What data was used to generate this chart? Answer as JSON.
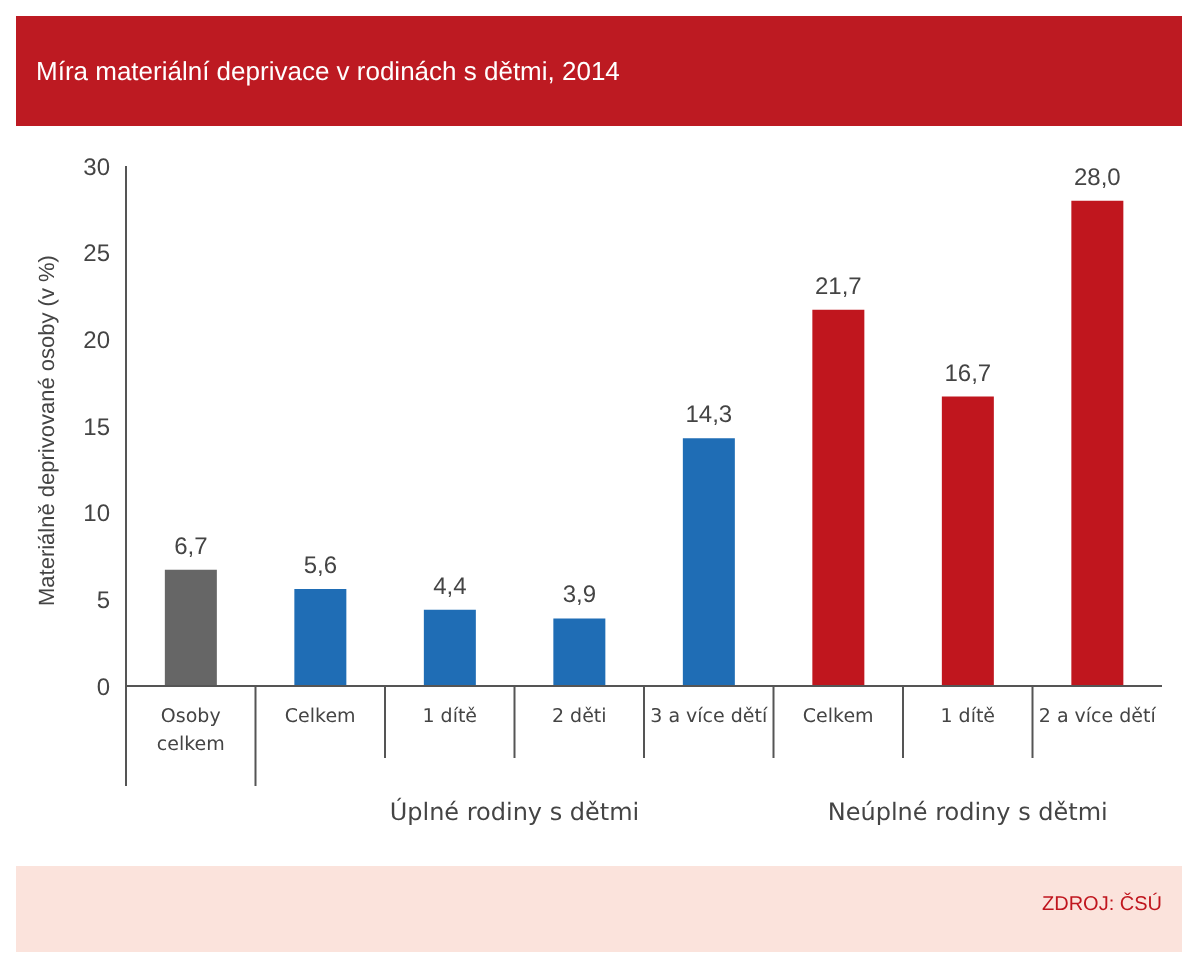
{
  "chart_data": {
    "type": "bar",
    "title": "Míra materiální deprivace v rodinách s dětmi, 2014",
    "ylabel": "Materiálně deprivované osoby (v %)",
    "categories": [
      "Osoby celkem",
      "Celkem",
      "1 dítě",
      "2 děti",
      "3 a více dětí",
      "Celkem",
      "1 dítě",
      "2 a více dětí"
    ],
    "values": [
      6.7,
      5.6,
      4.4,
      3.9,
      14.3,
      21.7,
      16.7,
      28.0
    ],
    "colors": [
      "#666666",
      "#1f6db5",
      "#1f6db5",
      "#1f6db5",
      "#1f6db5",
      "#c0161e",
      "#c0161e",
      "#c0161e"
    ],
    "value_labels": [
      "6,7",
      "5,6",
      "4,4",
      "3,9",
      "14,3",
      "21,7",
      "16,7",
      "28,0"
    ],
    "ylim": [
      0,
      30
    ],
    "yticks": [
      0,
      5,
      10,
      15,
      20,
      25,
      30
    ],
    "grid": false,
    "annotations": [
      "Úplné rodiny s dětmi",
      "Neúplné rodiny s dětmi",
      "ZDROJ: ČSÚ"
    ]
  }
}
